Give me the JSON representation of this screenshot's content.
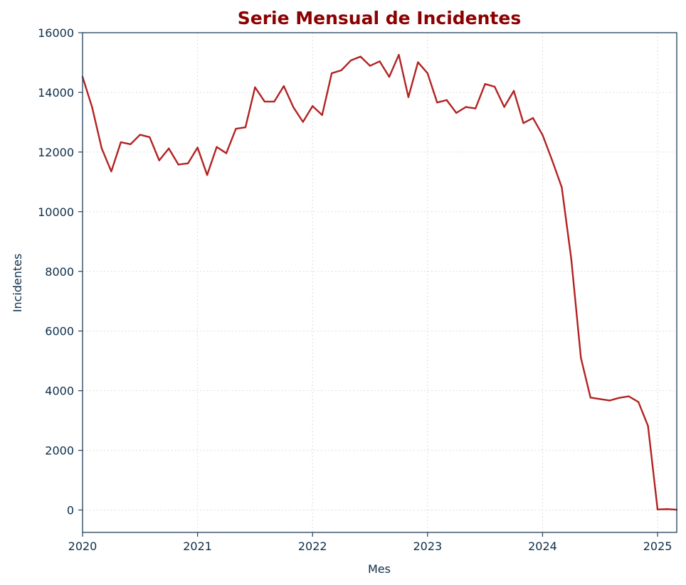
{
  "chart_data": {
    "type": "line",
    "title": "Serie Mensual de Incidentes",
    "xlabel": "Mes",
    "ylabel": "Incidentes",
    "xlim": [
      "2020-01",
      "2025-03"
    ],
    "ylim": [
      -750,
      16000
    ],
    "yticks": [
      "0",
      "2000",
      "4000",
      "6000",
      "8000",
      "10000",
      "12000",
      "14000",
      "16000"
    ],
    "xticks": [
      "2020",
      "2021",
      "2022",
      "2023",
      "2024",
      "2025"
    ],
    "grid": true,
    "colors": {
      "line": "#b22222",
      "title": "#8b0000",
      "axis": "#1f3f5b",
      "text": "#0b2e4a"
    },
    "x": [
      "2020-01",
      "2020-02",
      "2020-03",
      "2020-04",
      "2020-05",
      "2020-06",
      "2020-07",
      "2020-08",
      "2020-09",
      "2020-10",
      "2020-11",
      "2020-12",
      "2021-01",
      "2021-02",
      "2021-03",
      "2021-04",
      "2021-05",
      "2021-06",
      "2021-07",
      "2021-08",
      "2021-09",
      "2021-10",
      "2021-11",
      "2021-12",
      "2022-01",
      "2022-02",
      "2022-03",
      "2022-04",
      "2022-05",
      "2022-06",
      "2022-07",
      "2022-08",
      "2022-09",
      "2022-10",
      "2022-11",
      "2022-12",
      "2023-01",
      "2023-02",
      "2023-03",
      "2023-04",
      "2023-05",
      "2023-06",
      "2023-07",
      "2023-08",
      "2023-09",
      "2023-10",
      "2023-11",
      "2023-12",
      "2024-01",
      "2024-02",
      "2024-03",
      "2024-04",
      "2024-05",
      "2024-06",
      "2024-07",
      "2024-08",
      "2024-09",
      "2024-10",
      "2024-11",
      "2024-12",
      "2025-01",
      "2025-02",
      "2025-03"
    ],
    "series": [
      {
        "values": [
          14520,
          13500,
          12120,
          11350,
          12330,
          12260,
          12580,
          12500,
          11720,
          12120,
          11580,
          11620,
          12150,
          11230,
          12170,
          11960,
          12780,
          12830,
          14170,
          13690,
          13690,
          14210,
          13500,
          13010,
          13540,
          13240,
          14640,
          14740,
          15070,
          15200,
          14890,
          15040,
          14520,
          15260,
          13840,
          15010,
          14640,
          13660,
          13740,
          13310,
          13510,
          13460,
          14280,
          14190,
          13510,
          14050,
          12970,
          13140,
          12570,
          11720,
          10820,
          8400,
          5100,
          3770,
          3720,
          3670,
          3760,
          3810,
          3620,
          2820,
          20,
          30,
          10
        ]
      }
    ]
  }
}
